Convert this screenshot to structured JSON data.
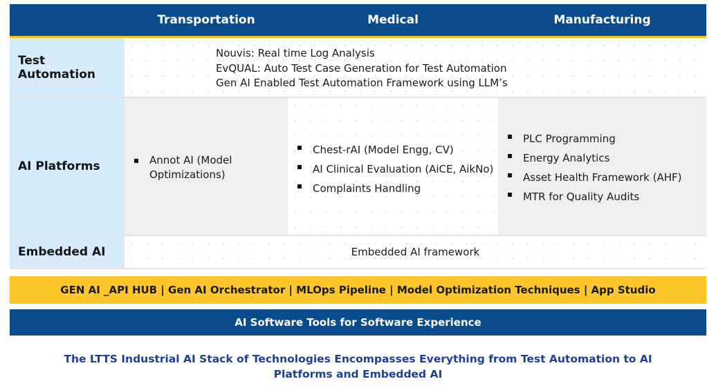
{
  "header": {
    "columns": [
      "Transportation",
      "Medical",
      "Manufacturing"
    ]
  },
  "rows": {
    "test_automation": {
      "label": "Test Automation",
      "lines": [
        "Nouvis: Real time Log Analysis",
        "EvQUAL: Auto Test Case Generation for Test Automation",
        "Gen AI Enabled Test Automation Framework using LLM’s"
      ]
    },
    "ai_platforms": {
      "label": "AI Platforms",
      "transportation": [
        "Annot AI (Model Optimizations)"
      ],
      "medical": [
        "Chest-rAI (Model Engg, CV)",
        "AI Clinical Evaluation (AiCE, AikNo)",
        "Complaints Handling"
      ],
      "manufacturing": [
        "PLC Programming",
        "Energy Analytics",
        "Asset Health Framework (AHF)",
        "MTR for Quality Audits"
      ]
    },
    "embedded_ai": {
      "label": "Embedded AI",
      "text": "Embedded AI framework"
    }
  },
  "bars": {
    "gold": "GEN AI _API HUB | Gen AI Orchestrator | MLOps Pipeline | Model Optimization Techniques | App Studio",
    "blue": "AI Software Tools for Software Experience"
  },
  "caption": {
    "line1": "The LTTS Industrial AI Stack of Technologies Encompasses Everything from Test Automation to AI",
    "line2": "Platforms and Embedded AI"
  },
  "colors": {
    "header_blue": "#0b4a8b",
    "accent_gold": "#fcc52a",
    "label_bg": "#d6ecfa",
    "caption_blue": "#1f3f95"
  }
}
